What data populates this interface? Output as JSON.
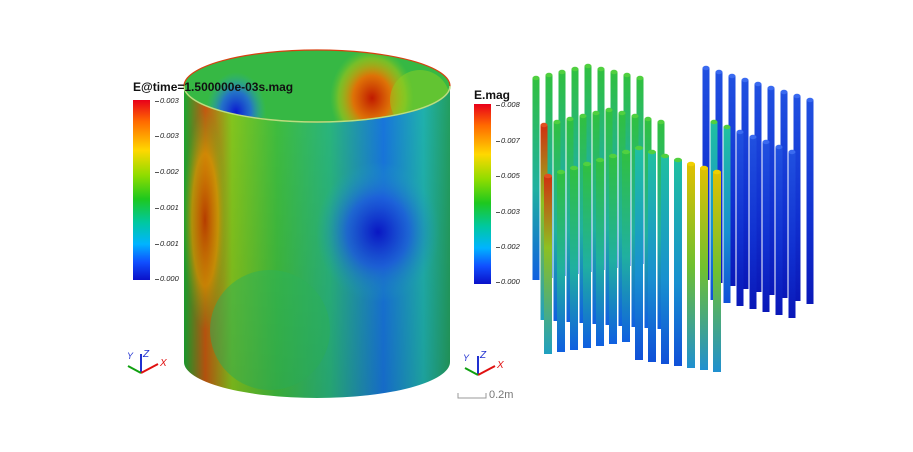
{
  "left_view": {
    "legend": {
      "title": "E@time=1.500000e-03s.mag",
      "ticks": [
        "0.003",
        "0.003",
        "0.002",
        "0.001",
        "0.001",
        "0.000"
      ]
    },
    "triad": {
      "y": "Y",
      "z": "Z",
      "x": "X"
    }
  },
  "right_view": {
    "legend": {
      "title": "E.mag",
      "ticks": [
        "0.008",
        "0.007",
        "0.005",
        "0.003",
        "0.002",
        "0.000"
      ]
    },
    "triad": {
      "y": "Y",
      "z": "Z",
      "x": "X"
    },
    "scale_bar": {
      "label": "0.2m"
    }
  },
  "colors": {
    "axis_x": "#e01010",
    "axis_y": "#10a010",
    "axis_z": "#2030d0",
    "colormap": [
      "#e8001a",
      "#ff6a00",
      "#ffd800",
      "#8edc00",
      "#1ec81e",
      "#00c8a0",
      "#00b4ff",
      "#1050ff",
      "#0a10c8"
    ]
  }
}
